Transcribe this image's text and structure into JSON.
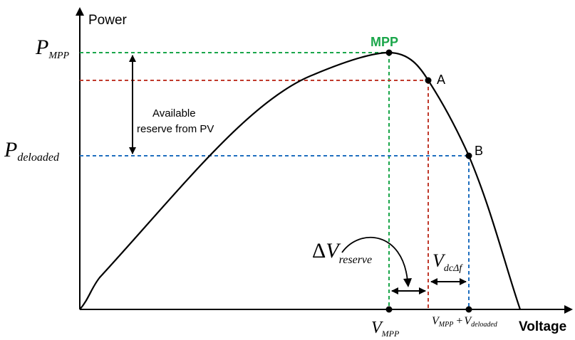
{
  "axes": {
    "y_label": "Power",
    "x_label": "Voltage"
  },
  "y_ticks": {
    "p_mpp": {
      "main": "P",
      "sub": "MPP"
    },
    "p_deloaded": {
      "main": "P",
      "sub": "deloaded"
    }
  },
  "x_ticks": {
    "v_mpp": {
      "main": "V",
      "sub": "MPP"
    },
    "v_mpp_plus": {
      "main": "V",
      "sub": "MPP",
      "plus": "+",
      "main2": "V",
      "sub2": "deloaded"
    }
  },
  "points": {
    "mpp": "MPP",
    "a": "A",
    "b": "B"
  },
  "annotations": {
    "reserve_line1": "Available",
    "reserve_line2": "reserve from PV",
    "delta_v": {
      "delta": "Δ",
      "main": "V",
      "sub": "reserve"
    },
    "v_dc": {
      "main": "V",
      "sub": "dcΔf"
    }
  },
  "colors": {
    "curve": "#000000",
    "mpp_guide": "#1aa64a",
    "mpp_label": "#1aa64a",
    "a_guide": "#c0392b",
    "b_guide": "#1f6fbf"
  }
}
